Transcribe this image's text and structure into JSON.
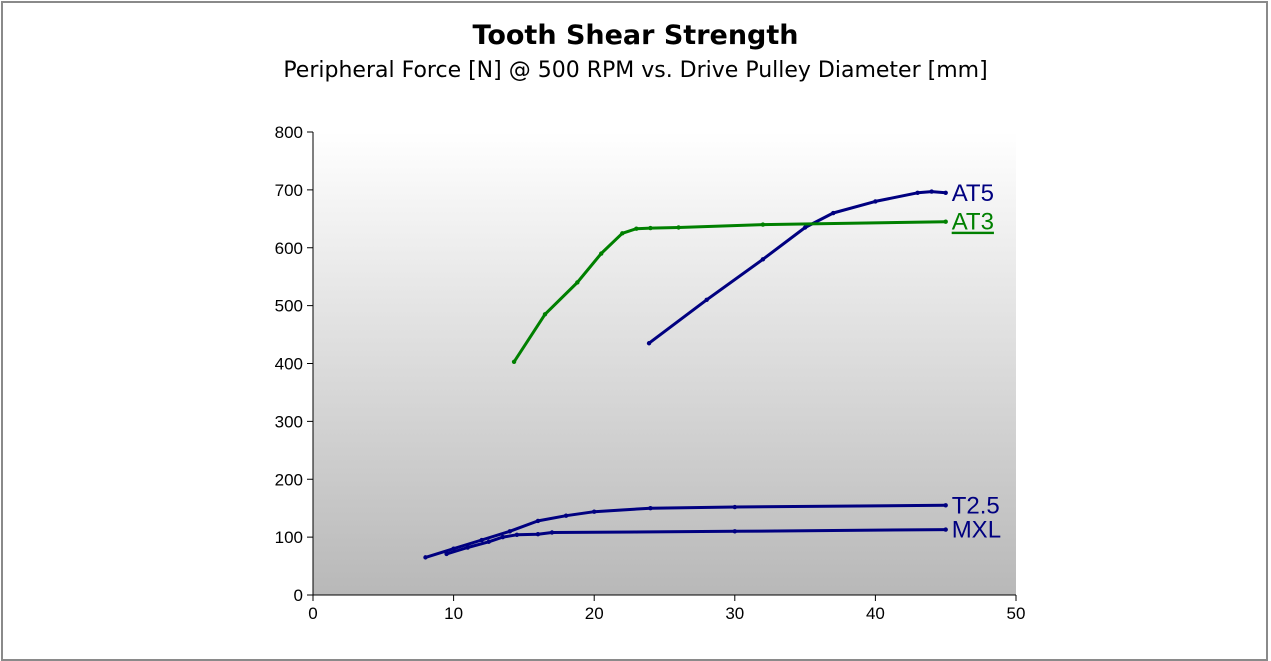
{
  "chart_data": {
    "type": "line",
    "title": "Tooth Shear Strength",
    "subtitle": "Peripheral Force [N] @ 500 RPM vs. Drive Pulley Diameter [mm]",
    "xlabel": "",
    "ylabel": "",
    "xlim": [
      0,
      50
    ],
    "ylim": [
      0,
      800
    ],
    "xticks": [
      0,
      10,
      20,
      30,
      40,
      50
    ],
    "yticks": [
      0,
      100,
      200,
      300,
      400,
      500,
      600,
      700,
      800
    ],
    "grid": false,
    "legend": "none",
    "series": [
      {
        "name": "AT5",
        "color": "#000080",
        "label_underlined": false,
        "x": [
          23.9,
          28,
          32,
          35,
          37,
          40,
          43,
          44,
          45
        ],
        "y": [
          435,
          510,
          580,
          635,
          660,
          680,
          695,
          697,
          695
        ]
      },
      {
        "name": "AT3",
        "color": "#008000",
        "label_underlined": true,
        "x": [
          14.3,
          16.5,
          18.8,
          20.5,
          22,
          23,
          24,
          26,
          32,
          45
        ],
        "y": [
          403,
          485,
          540,
          590,
          625,
          633,
          634,
          635,
          640,
          645
        ]
      },
      {
        "name": "T2.5",
        "color": "#000080",
        "label_underlined": false,
        "x": [
          8,
          10,
          12,
          14,
          16,
          18,
          20,
          24,
          30,
          45
        ],
        "y": [
          65,
          80,
          95,
          110,
          128,
          137,
          144,
          150,
          152,
          155
        ]
      },
      {
        "name": "MXL",
        "color": "#000080",
        "label_underlined": false,
        "x": [
          9.5,
          11,
          12.5,
          13.5,
          14.5,
          16,
          17,
          30,
          45
        ],
        "y": [
          71,
          82,
          92,
          100,
          104,
          105,
          108,
          110,
          113
        ]
      }
    ]
  }
}
